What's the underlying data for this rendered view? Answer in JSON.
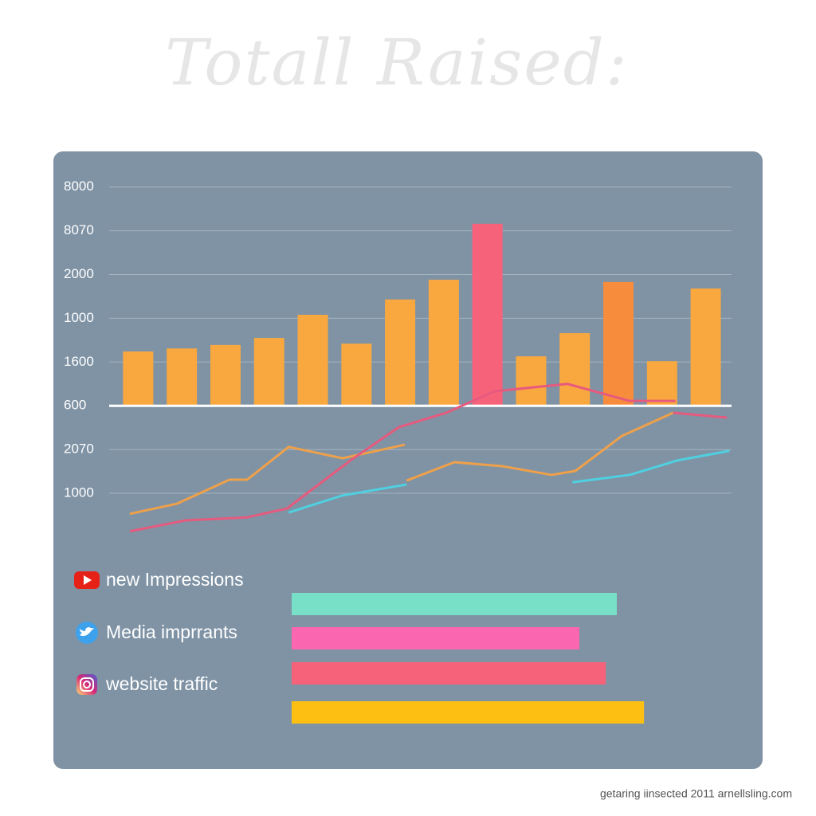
{
  "chart_data": {
    "type": "bar",
    "title": "Totall Raised:",
    "footer": "getaring iinsected 2011 arnellsling.com",
    "categories": [
      null,
      null,
      null,
      null,
      null,
      null,
      null,
      null,
      null,
      null,
      null,
      null,
      null,
      null
    ],
    "values": [
      3.24,
      3.31,
      3.39,
      3.55,
      4.08,
      3.42,
      4.43,
      4.88,
      6.16,
      3.13,
      3.66,
      4.83,
      3.02,
      4.68
    ],
    "colors": [
      "#f9a83f",
      "#f9a83f",
      "#f9a83f",
      "#f9a83f",
      "#f9a83f",
      "#f9a83f",
      "#f9a83f",
      "#f9a83f",
      "#f7627b",
      "#f9a83f",
      "#f9a83f",
      "#f78c3c",
      "#f9a83f",
      "#f9a83f"
    ],
    "ylim": [
      -1,
      7.5
    ],
    "yticks": [
      {
        "value": 7,
        "label": "8000"
      },
      {
        "value": 6,
        "label": "8070"
      },
      {
        "value": 5,
        "label": "2000"
      },
      {
        "value": 4,
        "label": "1000"
      },
      {
        "value": 3,
        "label": "1600"
      },
      {
        "value": 2,
        "label": "600"
      },
      {
        "value": 1,
        "label": "2070"
      },
      {
        "value": 0,
        "label": "1000"
      }
    ],
    "grid": true,
    "xlim": [
      0,
      100
    ],
    "lines": [
      {
        "color": "#eea04a",
        "x": [
          2.2,
          9.9,
          18.5,
          21.4,
          28.2,
          37.0,
          47.2,
          null,
          47.5,
          55.3,
          63.1,
          71.2,
          75.1,
          82.7,
          91.1
        ],
        "values": [
          -0.47,
          -0.24,
          0.31,
          0.31,
          1.06,
          0.8,
          1.11,
          null,
          0.29,
          0.71,
          0.62,
          0.42,
          0.51,
          1.31,
          1.84
        ]
      },
      {
        "color": "#e65a7e",
        "x": [
          2.2,
          11.3,
          21.4,
          27.9,
          38.3,
          46.2,
          54.0,
          61.8,
          73.8,
          84.0,
          91.5,
          null,
          91.1,
          99.9
        ],
        "values": [
          -0.87,
          -0.62,
          -0.55,
          -0.35,
          0.75,
          1.51,
          1.84,
          2.33,
          2.5,
          2.11,
          2.11,
          null,
          1.84,
          1.73
        ]
      },
      {
        "color": "#4fd0e0",
        "x": [
          28.2,
          37.0,
          47.5,
          null,
          74.6,
          84.0,
          91.8,
          100.3
        ],
        "values": [
          -0.44,
          -0.05,
          0.2,
          null,
          0.25,
          0.42,
          0.75,
          0.97
        ]
      }
    ],
    "legend": [
      "new Impressions",
      "Media imprrants",
      "website traffic"
    ],
    "hbars": {
      "lim": [
        0,
        100
      ],
      "values": [
        80,
        70.8,
        77.3,
        86.7
      ],
      "colors": [
        "#79e0c8",
        "#fb66b0",
        "#f7627b",
        "#fdc012"
      ]
    }
  }
}
